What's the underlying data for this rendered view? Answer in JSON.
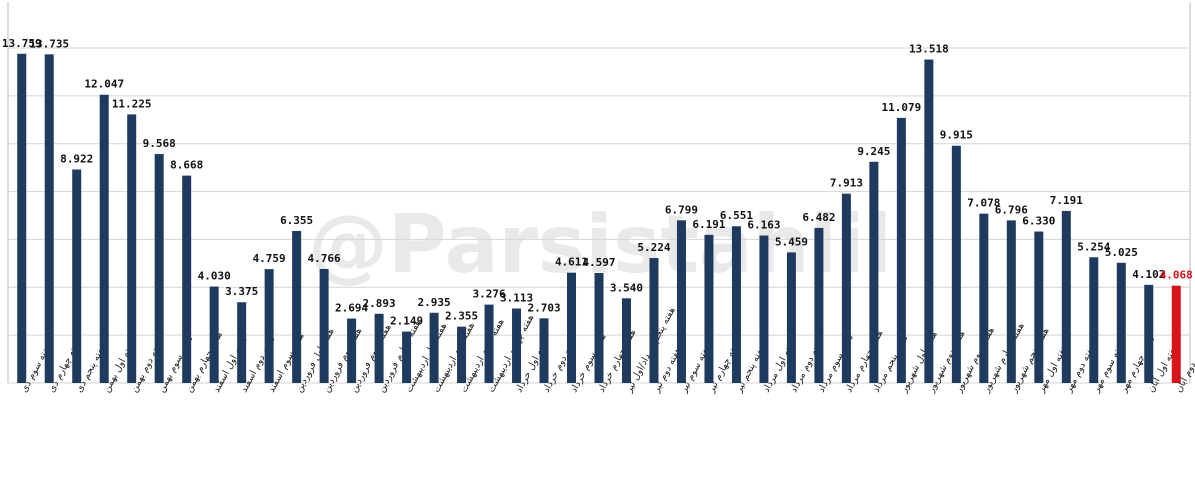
{
  "chart_data": {
    "type": "bar",
    "watermark": "@Parsistahlil",
    "categories": [
      "هفته سوم دی",
      "هفته چهارم دی",
      "هفته پنجم دی",
      "هفته اول بهمن",
      "هفته دوم بهمن",
      "هفته سوم بهمن",
      "هفته چهارم بهمن",
      "هفته اول اسفند",
      "هفته دوم اسفند",
      "هفته سوم اسفند",
      "هفته اول فروردین",
      "هفته دوم فروردین",
      "هفته سوم فروردین",
      "هفته چهارم فروردین",
      "هفته اول اردیبهشت",
      "هفته دوم اردیبهشت",
      "هفته سوم اردیبهشت",
      "هفته چهارم اردیبهشت",
      "هفته اول خرداد",
      "هفته دوم خرداد",
      "هفته سوم خرداد",
      "هفته چهارم خرداد",
      "هفته پنجم خرداد/اول تیر",
      "هفته دوم تیر",
      "هفته سوم تیر",
      "هفته چهارم تیر",
      "هفته پنجم تیر",
      "هفته اول مرداد",
      "هفته دوم مرداد",
      "هفته سوم مرداد",
      "هفته چهارم مرداد",
      "هفته پنجم مرداد",
      "هفته اول شهریور",
      "هفته دوم شهریور",
      "هفته سوم شهریور",
      "هفته چهارم شهریور",
      "هفته پنجم شهریور",
      "هفته اول مهر",
      "هفته دوم مهر",
      "هفته سوم مهر",
      "هفته چهارم مهر",
      "هفته اول آبان",
      "هفته دوم آبان"
    ],
    "values": [
      13759,
      13735,
      8922,
      12047,
      11225,
      9568,
      8668,
      4030,
      3375,
      4759,
      6355,
      4766,
      2694,
      2893,
      2149,
      2935,
      2355,
      3276,
      3113,
      2703,
      4611,
      4597,
      3540,
      5224,
      6799,
      6191,
      6551,
      6163,
      5459,
      6482,
      7913,
      9245,
      11079,
      13518,
      9915,
      7078,
      6796,
      6330,
      7191,
      5254,
      5025,
      4102,
      4068
    ],
    "value_labels": [
      "13.759",
      "13.735",
      "8.922",
      "12.047",
      "11.225",
      "9.568",
      "8.668",
      "4.030",
      "3.375",
      "4.759",
      "6.355",
      "4.766",
      "2.694",
      "2.893",
      "2.149",
      "2.935",
      "2.355",
      "3.276",
      "3.113",
      "2.703",
      "4.611",
      "4.597",
      "3.540",
      "5.224",
      "6.799",
      "6.191",
      "6.551",
      "6.163",
      "5.459",
      "6.482",
      "7.913",
      "9.245",
      "11.079",
      "13.518",
      "9.915",
      "7.078",
      "6.796",
      "6.330",
      "7.191",
      "5.254",
      "5.025",
      "4.102",
      "4.068"
    ],
    "colors": [
      "#1f3a5f",
      "#1f3a5f",
      "#1f3a5f",
      "#1f3a5f",
      "#1f3a5f",
      "#1f3a5f",
      "#1f3a5f",
      "#1f3a5f",
      "#1f3a5f",
      "#1f3a5f",
      "#1f3a5f",
      "#1f3a5f",
      "#1f3a5f",
      "#1f3a5f",
      "#1f3a5f",
      "#1f3a5f",
      "#1f3a5f",
      "#1f3a5f",
      "#1f3a5f",
      "#1f3a5f",
      "#1f3a5f",
      "#1f3a5f",
      "#1f3a5f",
      "#1f3a5f",
      "#1f3a5f",
      "#1f3a5f",
      "#1f3a5f",
      "#1f3a5f",
      "#1f3a5f",
      "#1f3a5f",
      "#1f3a5f",
      "#1f3a5f",
      "#1f3a5f",
      "#1f3a5f",
      "#1f3a5f",
      "#1f3a5f",
      "#1f3a5f",
      "#1f3a5f",
      "#1f3a5f",
      "#1f3a5f",
      "#1f3a5f",
      "#1f3a5f",
      "#d9141b"
    ],
    "label_colors": [
      "#111",
      "#111",
      "#111",
      "#111",
      "#111",
      "#111",
      "#111",
      "#111",
      "#111",
      "#111",
      "#111",
      "#111",
      "#111",
      "#111",
      "#111",
      "#111",
      "#111",
      "#111",
      "#111",
      "#111",
      "#111",
      "#111",
      "#111",
      "#111",
      "#111",
      "#111",
      "#111",
      "#111",
      "#111",
      "#111",
      "#111",
      "#111",
      "#111",
      "#111",
      "#111",
      "#111",
      "#111",
      "#111",
      "#111",
      "#111",
      "#111",
      "#111",
      "#d9141b"
    ],
    "ylim": [
      0,
      14000
    ],
    "yticks": [
      0,
      2000,
      4000,
      6000,
      8000,
      10000,
      12000,
      14000
    ],
    "grid": true
  }
}
